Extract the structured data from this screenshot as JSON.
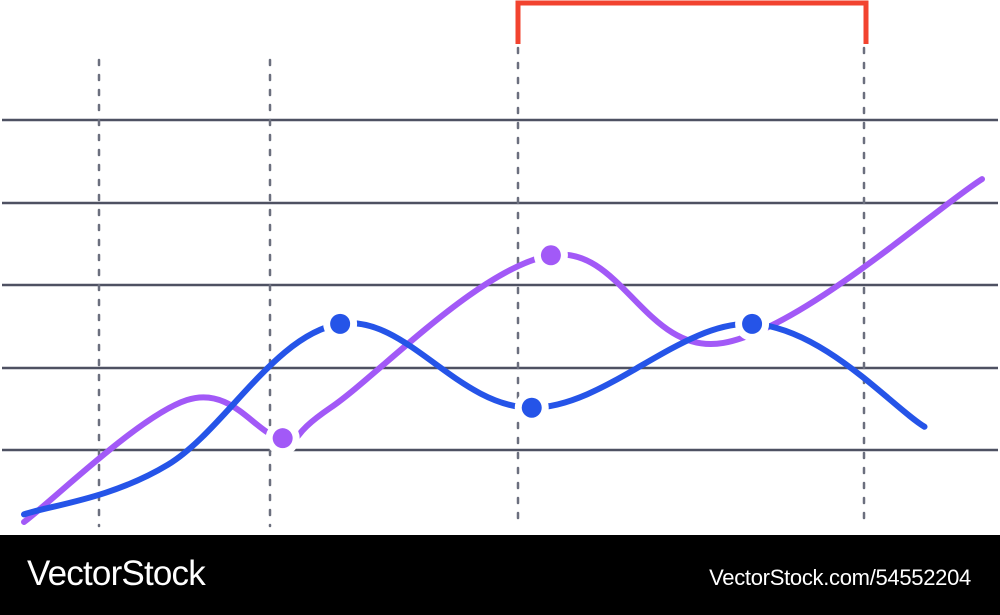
{
  "chart_data": {
    "type": "line",
    "title": "",
    "xlabel": "",
    "ylabel": "",
    "xlim": [
      0,
      100
    ],
    "ylim": [
      0,
      100
    ],
    "grid": true,
    "highlight_range": [
      53,
      89
    ],
    "series": [
      {
        "color": "#a259f7",
        "smooth": true,
        "x": [
          0,
          17,
          27,
          32,
          55,
          73,
          100
        ],
        "y": [
          0,
          32,
          22,
          30,
          70,
          47,
          90
        ],
        "markers": [
          {
            "x": 27,
            "y": 22
          },
          {
            "x": 55,
            "y": 70
          }
        ]
      },
      {
        "color": "#2554e8",
        "smooth": true,
        "x": [
          0,
          15,
          33,
          53,
          76,
          94
        ],
        "y": [
          2,
          15,
          52,
          30,
          52,
          25
        ],
        "markers": [
          {
            "x": 33,
            "y": 52
          },
          {
            "x": 53,
            "y": 30
          },
          {
            "x": 76,
            "y": 52
          }
        ]
      }
    ]
  },
  "colors": {
    "grid_line": "#4e5162",
    "dotted_line": "#6b6f7e",
    "bracket": "#f2432f",
    "background": "#ffffff",
    "footer": "#000000"
  },
  "footer": {
    "brand": "VectorStock",
    "credit": "VectorStock.com/54552204"
  }
}
